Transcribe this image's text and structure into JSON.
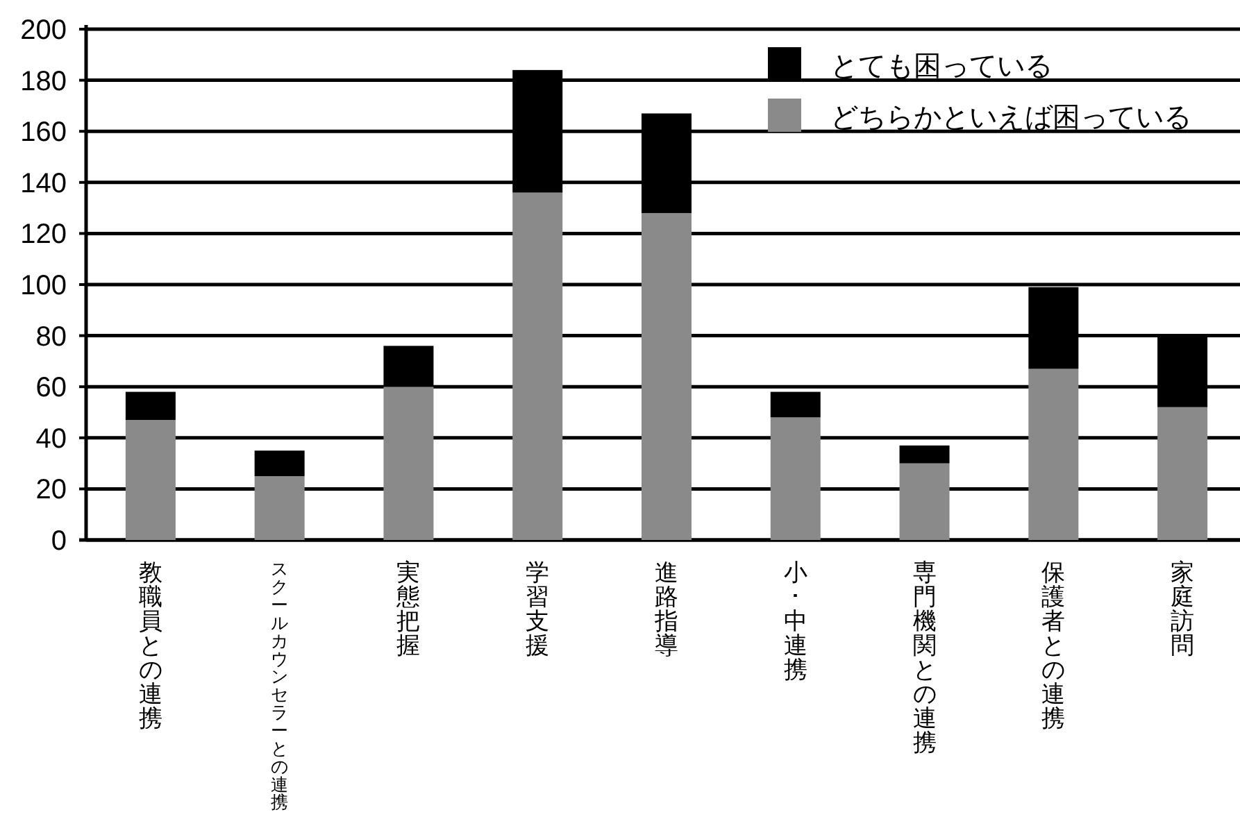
{
  "chart_data": {
    "type": "bar",
    "stacked": true,
    "categories": [
      "教職員との連携",
      "スクールカウンセラーとの連携",
      "実態把握",
      "学習支援",
      "進路指導",
      "小･中連携",
      "専門機関との連携",
      "保護者との連携",
      "家庭訪問"
    ],
    "series": [
      {
        "name": "どちらかといえば困っている",
        "color": "#8a8a8a",
        "values": [
          47,
          25,
          60,
          136,
          128,
          48,
          30,
          67,
          52
        ]
      },
      {
        "name": "とても困っている",
        "color": "#000000",
        "values": [
          11,
          10,
          16,
          48,
          39,
          10,
          7,
          32,
          28
        ]
      }
    ],
    "ylim": [
      0,
      200
    ],
    "yticks": [
      0,
      20,
      40,
      60,
      80,
      100,
      120,
      140,
      160,
      180,
      200
    ],
    "grid": "y",
    "legend": "top right"
  }
}
